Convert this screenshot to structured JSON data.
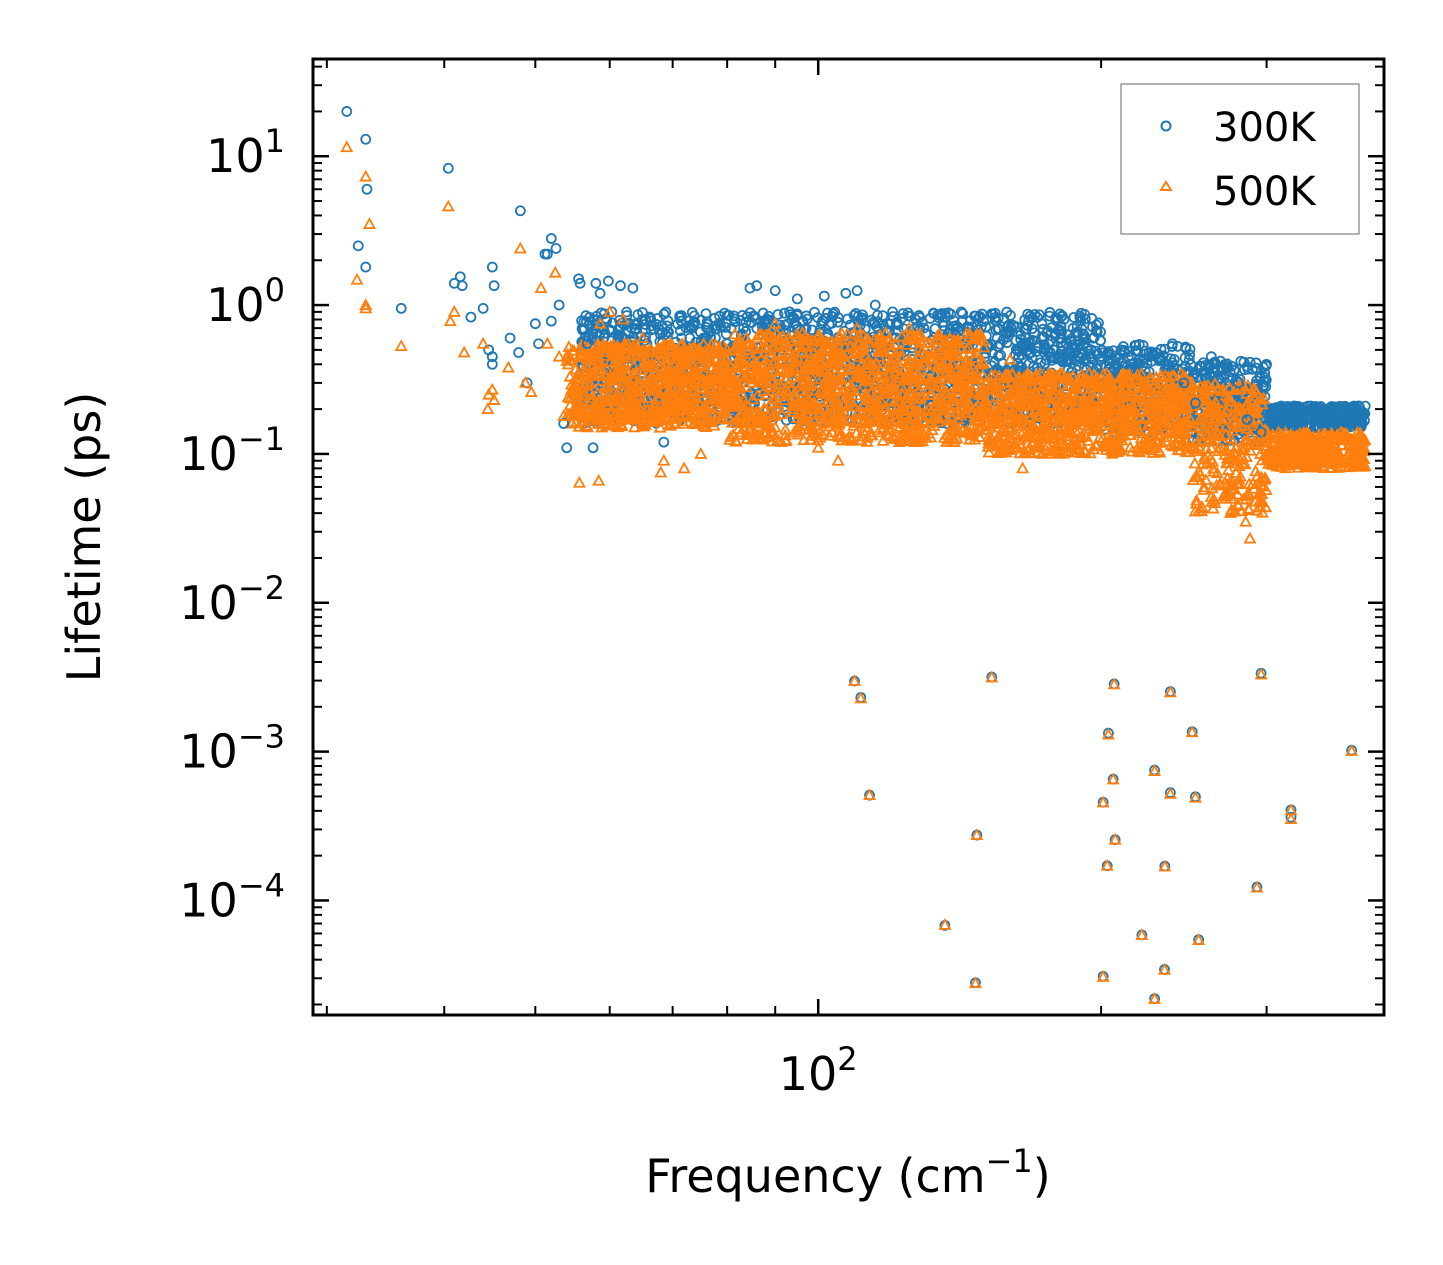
{
  "chart_data": {
    "type": "scatter",
    "xscale": "log",
    "yscale": "log",
    "xlim": [
      29,
      400
    ],
    "ylim": [
      1.7e-05,
      45
    ],
    "xlabel": {
      "text": "Frequency (cm",
      "sup": "−1",
      "suffix": ")"
    },
    "ylabel": "Lifetime (ps)",
    "x_ticks": [
      {
        "value": 100,
        "base": "10",
        "exp": "2"
      }
    ],
    "y_ticks": [
      {
        "value": 10,
        "base": "10",
        "exp": "1"
      },
      {
        "value": 1,
        "base": "10",
        "exp": "0"
      },
      {
        "value": 0.1,
        "base": "10",
        "exp": "−1"
      },
      {
        "value": 0.01,
        "base": "10",
        "exp": "−2"
      },
      {
        "value": 0.001,
        "base": "10",
        "exp": "−3"
      },
      {
        "value": 0.0001,
        "base": "10",
        "exp": "−4"
      }
    ],
    "legend": {
      "position": "top-right"
    },
    "series": [
      {
        "name": "300K",
        "marker": "circle",
        "color": "#1f77b4",
        "points": [
          [
            31.5,
            20
          ],
          [
            33,
            13
          ],
          [
            33.1,
            6
          ],
          [
            33,
            1.8
          ],
          [
            32.4,
            2.5
          ],
          [
            36,
            0.95
          ],
          [
            40.4,
            8.3
          ],
          [
            41,
            1.4
          ],
          [
            41.6,
            1.55
          ],
          [
            41.8,
            1.35
          ],
          [
            42.7,
            0.83
          ],
          [
            44,
            0.95
          ],
          [
            45,
            1.8
          ],
          [
            45,
            0.45
          ],
          [
            45,
            0.4
          ],
          [
            45.2,
            1.35
          ],
          [
            44.6,
            0.5
          ],
          [
            47,
            0.6
          ],
          [
            48,
            0.48
          ],
          [
            49,
            0.3
          ],
          [
            48.2,
            4.3
          ],
          [
            50,
            0.75
          ],
          [
            50.4,
            0.55
          ],
          [
            51.2,
            2.2
          ],
          [
            51.5,
            2.2
          ],
          [
            52,
            2.8
          ],
          [
            52,
            0.78
          ],
          [
            52.6,
            2.4
          ],
          [
            53,
            1.0
          ],
          [
            53.6,
            0.16
          ],
          [
            54,
            0.11
          ],
          [
            55.6,
            1.5
          ],
          [
            55.8,
            1.4
          ],
          [
            56.8,
            0.55
          ],
          [
            57.6,
            0.11
          ],
          [
            58,
            1.4
          ],
          [
            58.6,
            1.2
          ],
          [
            59.8,
            1.45
          ],
          [
            60.3,
            0.9
          ],
          [
            61.6,
            1.35
          ],
          [
            62.5,
            0.75
          ],
          [
            63.5,
            1.3
          ],
          [
            65,
            0.8
          ],
          [
            66.4,
            0.68
          ],
          [
            68.5,
            0.12
          ],
          [
            73,
            0.6
          ],
          [
            80,
            0.55
          ],
          [
            84.6,
            1.3
          ],
          [
            86,
            1.35
          ],
          [
            88,
            0.75
          ],
          [
            90,
            1.25
          ],
          [
            95,
            1.1
          ],
          [
            101.5,
            1.15
          ],
          [
            107,
            1.2
          ],
          [
            110,
            1.25
          ],
          [
            115,
            1.0
          ],
          [
            120,
            0.9
          ],
          [
            128,
            0.85
          ],
          [
            135,
            0.85
          ],
          [
            142,
            0.9
          ],
          [
            155,
            0.6
          ],
          [
            165,
            0.5
          ],
          [
            178,
            0.5
          ],
          [
            195,
            0.45
          ],
          [
            210,
            0.5
          ],
          [
            225,
            0.45
          ],
          [
            235,
            0.4
          ],
          [
            245,
            0.3
          ],
          [
            252,
            0.22
          ],
          [
            262,
            0.45
          ],
          [
            268,
            0.42
          ],
          [
            280,
            0.3
          ],
          [
            286,
            0.17
          ],
          [
            296,
            0.14
          ],
          [
            305,
            0.16
          ],
          [
            320,
            0.18
          ],
          [
            340,
            0.2
          ],
          [
            360,
            0.2
          ],
          [
            376,
            0.21
          ],
          [
            380,
            0.18
          ],
          [
            109.3,
            0.00298
          ],
          [
            111,
            0.00231
          ],
          [
            113.4,
            0.00051
          ],
          [
            136.4,
            6.8e-05
          ],
          [
            147,
            2.8e-05
          ],
          [
            147.5,
            0.000275
          ],
          [
            153,
            0.00317
          ],
          [
            203.6,
            0.00133
          ],
          [
            203,
            0.000171
          ],
          [
            201,
            0.000457
          ],
          [
            201,
            3.09e-05
          ],
          [
            206.5,
            0.00285
          ],
          [
            206,
            0.000653
          ],
          [
            207,
            0.000256
          ],
          [
            221,
            5.87e-05
          ],
          [
            228,
            2.19e-05
          ],
          [
            228,
            0.00075
          ],
          [
            233.8,
            0.00017
          ],
          [
            233.6,
            3.44e-05
          ],
          [
            237,
            0.00253
          ],
          [
            237,
            0.00053
          ],
          [
            250,
            0.00136
          ],
          [
            252,
            0.000497
          ],
          [
            254,
            5.45e-05
          ],
          [
            296,
            0.00336
          ],
          [
            293,
            0.000123
          ],
          [
            318.5,
            0.000406
          ],
          [
            318.5,
            0.000362
          ],
          [
            369.5,
            0.00102
          ]
        ]
      },
      {
        "name": "500K",
        "marker": "triangle",
        "color": "#ff7f0e",
        "points": [
          [
            31.5,
            11.5
          ],
          [
            33,
            7.3
          ],
          [
            33.3,
            3.5
          ],
          [
            33,
            1.0
          ],
          [
            33,
            0.95
          ],
          [
            32.3,
            1.48
          ],
          [
            36,
            0.53
          ],
          [
            40.4,
            4.6
          ],
          [
            40.6,
            0.78
          ],
          [
            41,
            0.9
          ],
          [
            42,
            0.48
          ],
          [
            44,
            0.55
          ],
          [
            44.5,
            0.2
          ],
          [
            45,
            0.27
          ],
          [
            45.2,
            0.23
          ],
          [
            44.6,
            0.25
          ],
          [
            46.8,
            0.38
          ],
          [
            48.2,
            2.4
          ],
          [
            48.8,
            0.3
          ],
          [
            49.5,
            0.26
          ],
          [
            50.7,
            1.3
          ],
          [
            51.5,
            0.55
          ],
          [
            52.5,
            1.65
          ],
          [
            53,
            0.45
          ],
          [
            53.6,
            0.18
          ],
          [
            55.7,
            0.064
          ],
          [
            58.4,
            0.066
          ],
          [
            58.6,
            0.75
          ],
          [
            60,
            0.9
          ],
          [
            62,
            0.8
          ],
          [
            65,
            0.6
          ],
          [
            68,
            0.075
          ],
          [
            68.5,
            0.09
          ],
          [
            72,
            0.08
          ],
          [
            75,
            0.1
          ],
          [
            80,
            0.5
          ],
          [
            86,
            0.6
          ],
          [
            90,
            0.75
          ],
          [
            95,
            0.6
          ],
          [
            100,
            0.11
          ],
          [
            105,
            0.09
          ],
          [
            110,
            0.7
          ],
          [
            118,
            0.65
          ],
          [
            125,
            0.7
          ],
          [
            135,
            0.5
          ],
          [
            142,
            0.2
          ],
          [
            150,
            0.52
          ],
          [
            160,
            0.43
          ],
          [
            165,
            0.08
          ],
          [
            175,
            0.33
          ],
          [
            190,
            0.32
          ],
          [
            205,
            0.3
          ],
          [
            215,
            0.25
          ],
          [
            230,
            0.28
          ],
          [
            245,
            0.2
          ],
          [
            255,
            0.17
          ],
          [
            265,
            0.22
          ],
          [
            275,
            0.05
          ],
          [
            285,
            0.035
          ],
          [
            288,
            0.027
          ],
          [
            297,
            0.12
          ],
          [
            310,
            0.1
          ],
          [
            320,
            0.13
          ],
          [
            340,
            0.13
          ],
          [
            360,
            0.14
          ],
          [
            378,
            0.12
          ],
          [
            109.3,
            0.00298
          ],
          [
            111,
            0.00228
          ],
          [
            113.4,
            0.00051
          ],
          [
            136.4,
            6.85e-05
          ],
          [
            147,
            2.78e-05
          ],
          [
            147.5,
            0.000275
          ],
          [
            153,
            0.00315
          ],
          [
            203.6,
            0.0013
          ],
          [
            203,
            0.000171
          ],
          [
            201,
            0.000455
          ],
          [
            201,
            3.07e-05
          ],
          [
            206.5,
            0.00283
          ],
          [
            206,
            0.00065
          ],
          [
            207,
            0.000256
          ],
          [
            221,
            5.85e-05
          ],
          [
            228,
            2.18e-05
          ],
          [
            228,
            0.00074
          ],
          [
            233.8,
            0.000169
          ],
          [
            233.6,
            3.42e-05
          ],
          [
            237,
            0.0025
          ],
          [
            237,
            0.00052
          ],
          [
            250,
            0.00135
          ],
          [
            252,
            0.00049
          ],
          [
            254,
            5.42e-05
          ],
          [
            296,
            0.0033
          ],
          [
            293,
            0.000122
          ],
          [
            318.5,
            0.000403
          ],
          [
            318.5,
            0.000352
          ],
          [
            369.5,
            0.00101
          ]
        ]
      }
    ]
  }
}
